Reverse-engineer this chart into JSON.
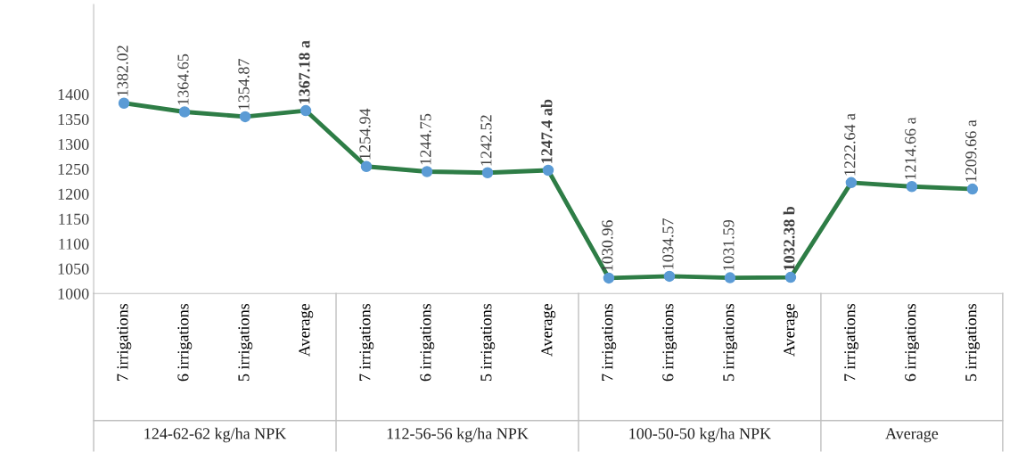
{
  "chart_data": {
    "type": "line",
    "categories": [
      "7 irrigations",
      "6 irrigations",
      "5 irrigations",
      "Average",
      "7 irrigations",
      "6 irrigations",
      "5 irrigations",
      "Average",
      "7 irrigations",
      "6 irrigations",
      "5 irrigations",
      "Average",
      "7 irrigations",
      "6 irrigations",
      "5 irrigations"
    ],
    "series": [
      {
        "color": "#2e7d46",
        "values": [
          1382.02,
          1364.65,
          1354.87,
          1367.18,
          1254.94,
          1244.75,
          1242.52,
          1247.4,
          1030.96,
          1034.57,
          1031.59,
          1032.38,
          1222.64,
          1214.66,
          1209.66
        ],
        "value_labels": [
          "1382.02",
          "1364.65",
          "1354.87",
          "1367.18 a",
          "1254.94",
          "1244.75",
          "1242.52",
          "1247.4 ab",
          "1030.96",
          "1034.57",
          "1031.59",
          "1032.38 b",
          "1222.64 a",
          "1214.66 a",
          "1209.66 a"
        ]
      }
    ],
    "marker": "circle",
    "ylim": [
      1000,
      1580
    ],
    "yticks": [
      1000,
      1050,
      1100,
      1150,
      1200,
      1250,
      1300,
      1350,
      1400
    ],
    "grid": false,
    "annotations": [
      "124-62-62 kg/ha NPK",
      "112-56-56 kg/ha NPK",
      "100-50-50 kg/ha NPK",
      "Average"
    ]
  }
}
